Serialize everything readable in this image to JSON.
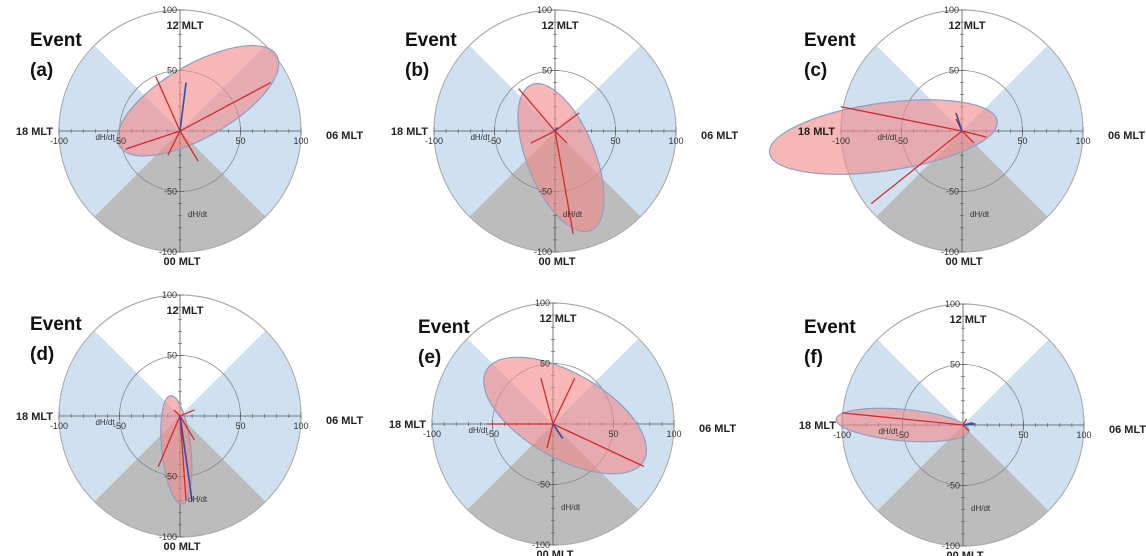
{
  "chart_data": [
    {
      "type": "polar-ellipse",
      "title": "Event",
      "panel_label": "(a)",
      "labels": {
        "top": "12 MLT",
        "bottom": "00 MLT",
        "left": "18 MLT",
        "right": "06 MLT"
      },
      "axis_title": "dH/dt",
      "rlim": [
        0,
        100
      ],
      "ticks": [
        "100",
        "50",
        "-50",
        "-100"
      ],
      "xticks": [
        "-100",
        "-50",
        "50",
        "100"
      ],
      "ellipse": {
        "center": [
          15,
          25
        ],
        "semi_major": 75,
        "semi_minor": 30,
        "angle_deg": 30
      },
      "red_vectors": [
        [
          75,
          40
        ],
        [
          -20,
          45
        ],
        [
          -45,
          -15
        ],
        [
          15,
          -25
        ],
        [
          -10,
          -20
        ]
      ],
      "blue_vectors": [
        [
          5,
          40
        ]
      ]
    },
    {
      "type": "polar-ellipse",
      "title": "Event",
      "panel_label": "(b)",
      "labels": {
        "top": "12 MLT",
        "bottom": "00 MLT",
        "left": "18 MLT",
        "right": "06 MLT"
      },
      "axis_title": "dH/dt",
      "rlim": [
        0,
        100
      ],
      "ticks": [
        "100",
        "50",
        "-50",
        "-100"
      ],
      "xticks": [
        "-100",
        "-50",
        "50",
        "100"
      ],
      "ellipse": {
        "center": [
          5,
          -22
        ],
        "semi_major": 65,
        "semi_minor": 28,
        "angle_deg": -68
      },
      "red_vectors": [
        [
          -30,
          35
        ],
        [
          15,
          -85
        ],
        [
          -20,
          -10
        ],
        [
          20,
          15
        ],
        [
          10,
          -10
        ]
      ],
      "blue_vectors": [
        [
          2,
          3
        ]
      ]
    },
    {
      "type": "polar-ellipse",
      "title": "Event",
      "panel_label": "(c)",
      "labels": {
        "top": "12 MLT",
        "bottom": "00 MLT",
        "left": "18 MLT",
        "right": "06 MLT"
      },
      "axis_title": "dH/dt",
      "rlim": [
        0,
        100
      ],
      "ticks": [
        "100",
        "50",
        "-50",
        "-100"
      ],
      "xticks": [
        "-100",
        "-50",
        "50",
        "100"
      ],
      "ellipse": {
        "center": [
          -65,
          -5
        ],
        "semi_major": 95,
        "semi_minor": 28,
        "angle_deg": 8
      },
      "red_vectors": [
        [
          -100,
          20
        ],
        [
          -75,
          -60
        ],
        [
          20,
          -5
        ],
        [
          -5,
          10
        ],
        [
          10,
          -10
        ]
      ],
      "blue_vectors": [
        [
          -5,
          15
        ]
      ]
    },
    {
      "type": "polar-ellipse",
      "title": "Event",
      "panel_label": "(d)",
      "labels": {
        "top": "12 MLT",
        "bottom": "00 MLT",
        "left": "18 MLT",
        "right": "06 MLT"
      },
      "axis_title": "dH/dt",
      "rlim": [
        0,
        100
      ],
      "ticks": [
        "100",
        "50",
        "-50",
        "-100"
      ],
      "xticks": [
        "-100",
        "-50",
        "50",
        "100"
      ],
      "ellipse": {
        "center": [
          -3,
          -28
        ],
        "semi_major": 45,
        "semi_minor": 12,
        "angle_deg": -84
      },
      "red_vectors": [
        [
          -18,
          -42
        ],
        [
          12,
          -20
        ],
        [
          -5,
          5
        ],
        [
          12,
          5
        ],
        [
          5,
          -70
        ]
      ],
      "blue_vectors": [
        [
          10,
          -70
        ]
      ]
    },
    {
      "type": "polar-ellipse",
      "title": "Event",
      "panel_label": "(e)",
      "labels": {
        "top": "12 MLT",
        "bottom": "00 MLT",
        "left": "18 MLT",
        "right": "06 MLT"
      },
      "axis_title": "dH/dt",
      "rlim": [
        0,
        100
      ],
      "ticks": [
        "100",
        "50",
        "-50",
        "-100"
      ],
      "xticks": [
        "-100",
        "-50",
        "50",
        "100"
      ],
      "ellipse": {
        "center": [
          10,
          7
        ],
        "semi_major": 75,
        "semi_minor": 35,
        "angle_deg": -30
      },
      "red_vectors": [
        [
          -55,
          0
        ],
        [
          75,
          -35
        ],
        [
          -10,
          38
        ],
        [
          18,
          38
        ],
        [
          -5,
          -20
        ]
      ],
      "blue_vectors": [
        [
          8,
          -12
        ]
      ]
    },
    {
      "type": "polar-ellipse",
      "title": "Event",
      "panel_label": "(f)",
      "labels": {
        "top": "12 MLT",
        "bottom": "00 MLT",
        "left": "18 MLT",
        "right": "06 MLT"
      },
      "axis_title": "dH/dt",
      "rlim": [
        0,
        100
      ],
      "ticks": [
        "100",
        "50",
        "-50",
        "-100"
      ],
      "xticks": [
        "-100",
        "-50",
        "50",
        "100"
      ],
      "ellipse": {
        "center": [
          -50,
          0
        ],
        "semi_major": 55,
        "semi_minor": 13,
        "angle_deg": -5
      },
      "red_vectors": [
        [
          -100,
          10
        ],
        [
          5,
          -5
        ],
        [
          3,
          5
        ],
        [
          8,
          2
        ]
      ],
      "blue_vectors": [
        [
          10,
          1
        ]
      ]
    }
  ],
  "colors": {
    "sector_blue": "#cfe0f0",
    "sector_gray": "#bcbcbc",
    "ellipse_fill": "#f28b8b",
    "ellipse_stroke": "#8c9fc4",
    "red_vector": "#d62a2a",
    "blue_vector": "#2f4fa8",
    "ring": "#aaaaaa",
    "axis": "#555555"
  }
}
